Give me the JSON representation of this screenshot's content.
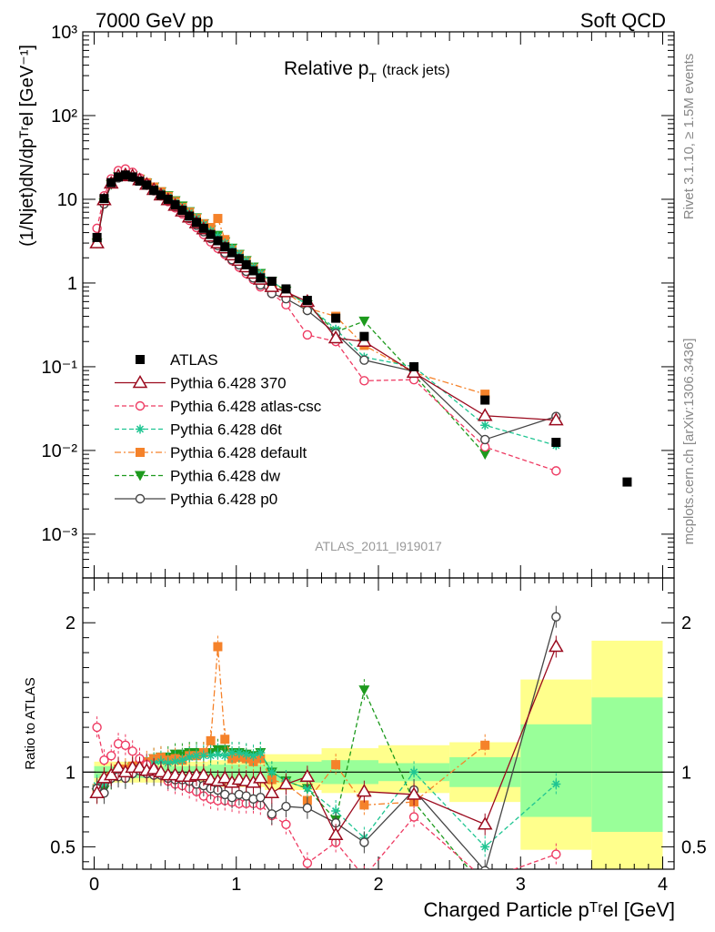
{
  "header": {
    "left": "7000 GeV pp",
    "right": "Soft QCD"
  },
  "side_labels": {
    "rivet": "Rivet 3.1.10, ≥ 1.5M events",
    "mcplots": "mcplots.cern.ch [arXiv:1306.3436]"
  },
  "analysis_id": "ATLAS_2011_I919017",
  "colors": {
    "atlas": "#000000",
    "p370": "#9b0a1e",
    "atlascsc": "#ee3a62",
    "d6t": "#1fc592",
    "default": "#f5822a",
    "dw": "#1d9a1d",
    "p0": "#454545",
    "band_yellow": "#ffff8c",
    "band_green": "#99ff99"
  },
  "chart_data": [
    {
      "type": "scatter",
      "panel": "main",
      "title_main": "Relative p",
      "title_sub": "T",
      "title_note": "(track jets)",
      "ylabel": "(1/Njet)dN/dpᵀʳel [GeV⁻¹]",
      "yscale": "log",
      "ylim": [
        0.0003,
        1000
      ],
      "xlim": [
        -0.08,
        4.08
      ],
      "y_ticks": [
        {
          "label": "10⁻³",
          "value": 0.001
        },
        {
          "label": "10⁻²",
          "value": 0.01
        },
        {
          "label": "10⁻¹",
          "value": 0.1
        },
        {
          "label": "1",
          "value": 1
        },
        {
          "label": "10",
          "value": 10
        },
        {
          "label": "10²",
          "value": 100
        },
        {
          "label": "10³",
          "value": 1000
        }
      ],
      "x": [
        0.02,
        0.07,
        0.12,
        0.17,
        0.22,
        0.27,
        0.32,
        0.37,
        0.42,
        0.47,
        0.52,
        0.57,
        0.62,
        0.67,
        0.72,
        0.77,
        0.82,
        0.87,
        0.92,
        0.97,
        1.02,
        1.07,
        1.12,
        1.17,
        1.25,
        1.35,
        1.5,
        1.7,
        1.9,
        2.25,
        2.75,
        3.25,
        3.75
      ],
      "series": [
        {
          "name": "ATLAS",
          "key": "atlas",
          "marker": "square-filled",
          "line": "none",
          "values": [
            3.5,
            10.2,
            15.8,
            18.5,
            19.5,
            18.5,
            16.5,
            14.8,
            12.8,
            11.2,
            10.0,
            8.6,
            7.4,
            6.3,
            5.3,
            4.5,
            3.8,
            3.2,
            2.7,
            2.3,
            1.95,
            1.65,
            1.4,
            1.15,
            1.05,
            0.85,
            0.62,
            0.38,
            0.23,
            0.1,
            0.04,
            0.0125,
            0.0042
          ]
        },
        {
          "name": "Pythia 6.428 370",
          "key": "p370",
          "marker": "triangle-open",
          "line": "solid",
          "values": [
            3.0,
            9.8,
            15.5,
            19.0,
            19.5,
            19.0,
            17.0,
            15.0,
            13.0,
            11.2,
            9.8,
            8.4,
            7.2,
            6.1,
            5.2,
            4.4,
            3.6,
            3.0,
            2.6,
            2.15,
            1.85,
            1.55,
            1.3,
            1.1,
            0.9,
            0.78,
            0.6,
            0.22,
            0.2,
            0.085,
            0.026,
            0.023,
            null
          ]
        },
        {
          "name": "Pythia 6.428 atlas-csc",
          "key": "atlascsc",
          "marker": "circle-open",
          "line": "dashed",
          "values": [
            4.5,
            11.0,
            17.5,
            22.0,
            23.0,
            21.0,
            18.0,
            15.5,
            13.0,
            11.0,
            9.4,
            7.9,
            6.7,
            5.6,
            4.6,
            3.8,
            3.1,
            2.6,
            2.2,
            1.85,
            1.55,
            1.3,
            1.1,
            0.9,
            0.75,
            0.55,
            0.24,
            0.2,
            0.068,
            0.07,
            0.011,
            0.0057,
            null
          ]
        },
        {
          "name": "Pythia 6.428 d6t",
          "key": "d6t",
          "marker": "star",
          "line": "dashed",
          "values": [
            3.2,
            9.4,
            15.3,
            18.3,
            19.0,
            18.8,
            17.0,
            15.4,
            13.6,
            12.0,
            10.6,
            9.2,
            8.0,
            6.9,
            5.9,
            5.0,
            4.2,
            3.6,
            3.0,
            2.6,
            2.2,
            1.85,
            1.55,
            1.3,
            1.05,
            0.8,
            0.55,
            0.28,
            0.13,
            0.1,
            0.02,
            0.0115,
            null
          ]
        },
        {
          "name": "Pythia 6.428 default",
          "key": "default",
          "marker": "square-filled",
          "line": "dashdot",
          "values": [
            3.1,
            9.6,
            15.4,
            18.8,
            19.8,
            19.2,
            17.5,
            15.8,
            14.0,
            12.3,
            10.8,
            9.4,
            8.0,
            7.0,
            5.9,
            5.1,
            4.6,
            5.9,
            3.3,
            2.5,
            2.15,
            1.8,
            1.5,
            1.25,
            1.0,
            0.78,
            0.5,
            0.4,
            0.18,
            0.085,
            0.047,
            null,
            null
          ]
        },
        {
          "name": "Pythia 6.428 dw",
          "key": "dw",
          "marker": "triangle-down-filled",
          "line": "dashed",
          "values": [
            3.0,
            9.0,
            15.0,
            18.5,
            19.5,
            19.0,
            17.2,
            15.6,
            14.0,
            12.3,
            11.0,
            9.6,
            8.3,
            7.1,
            6.0,
            5.1,
            4.3,
            3.7,
            3.1,
            2.6,
            2.2,
            1.85,
            1.55,
            1.3,
            1.05,
            0.8,
            0.55,
            0.26,
            0.35,
            0.08,
            0.009,
            null,
            null
          ]
        },
        {
          "name": "Pythia 6.428 p0",
          "key": "p0",
          "marker": "circle-open",
          "line": "solid",
          "values": [
            3.1,
            8.8,
            15.2,
            18.0,
            18.8,
            18.3,
            16.6,
            14.7,
            12.6,
            11.0,
            9.6,
            8.2,
            7.0,
            5.9,
            4.9,
            4.1,
            3.4,
            2.8,
            2.3,
            1.9,
            1.65,
            1.38,
            1.15,
            0.95,
            0.75,
            0.65,
            0.47,
            0.25,
            0.12,
            0.088,
            0.0135,
            0.0255,
            null
          ]
        }
      ],
      "legend_position": "left-middle"
    },
    {
      "type": "line",
      "panel": "ratio",
      "ylabel": "Ratio to ATLAS",
      "xlabel": "Charged Particle pᵀʳel [GeV]",
      "ylim": [
        0.35,
        2.3
      ],
      "xlim": [
        -0.08,
        4.08
      ],
      "y_ticks": [
        {
          "label": "0.5",
          "value": 0.5
        },
        {
          "label": "1",
          "value": 1
        },
        {
          "label": "2",
          "value": 2
        }
      ],
      "x_ticks": [
        {
          "label": "0",
          "value": 0
        },
        {
          "label": "1",
          "value": 1
        },
        {
          "label": "2",
          "value": 2
        },
        {
          "label": "3",
          "value": 3
        },
        {
          "label": "4",
          "value": 4
        }
      ],
      "reference_line": 1,
      "uncertainty_bands": [
        {
          "x0": 0.0,
          "x1": 0.8,
          "yellow": [
            0.93,
            1.07
          ],
          "green": [
            0.96,
            1.04
          ]
        },
        {
          "x0": 0.8,
          "x1": 1.2,
          "yellow": [
            0.9,
            1.08
          ],
          "green": [
            0.95,
            1.05
          ]
        },
        {
          "x0": 1.2,
          "x1": 1.6,
          "yellow": [
            0.88,
            1.12
          ],
          "green": [
            0.93,
            1.07
          ]
        },
        {
          "x0": 1.6,
          "x1": 2.0,
          "yellow": [
            0.86,
            1.16
          ],
          "green": [
            0.92,
            1.08
          ]
        },
        {
          "x0": 2.0,
          "x1": 2.5,
          "yellow": [
            0.86,
            1.18
          ],
          "green": [
            0.94,
            1.06
          ]
        },
        {
          "x0": 2.5,
          "x1": 3.0,
          "yellow": [
            0.8,
            1.2
          ],
          "green": [
            0.9,
            1.1
          ]
        },
        {
          "x0": 3.0,
          "x1": 3.5,
          "yellow": [
            0.48,
            1.62
          ],
          "green": [
            0.7,
            1.32
          ]
        },
        {
          "x0": 3.5,
          "x1": 4.0,
          "yellow": [
            0.35,
            1.88
          ],
          "green": [
            0.6,
            1.5
          ]
        }
      ],
      "x": [
        0.02,
        0.07,
        0.12,
        0.17,
        0.22,
        0.27,
        0.32,
        0.37,
        0.42,
        0.47,
        0.52,
        0.57,
        0.62,
        0.67,
        0.72,
        0.77,
        0.82,
        0.87,
        0.92,
        0.97,
        1.02,
        1.07,
        1.12,
        1.17,
        1.25,
        1.35,
        1.5,
        1.7,
        1.9,
        2.25,
        2.75,
        3.25
      ],
      "series": [
        {
          "name": "Pythia 6.428 370",
          "key": "p370",
          "values": [
            0.86,
            0.96,
            0.98,
            1.03,
            1.0,
            1.03,
            1.03,
            1.01,
            1.02,
            1.0,
            0.98,
            0.98,
            0.97,
            0.97,
            0.98,
            0.98,
            0.95,
            0.94,
            0.96,
            0.93,
            0.95,
            0.94,
            0.93,
            0.96,
            0.86,
            0.92,
            0.97,
            0.58,
            0.87,
            0.85,
            0.65,
            1.84
          ]
        },
        {
          "name": "Pythia 6.428 atlas-csc",
          "key": "atlascsc",
          "values": [
            1.3,
            1.08,
            1.11,
            1.19,
            1.18,
            1.14,
            1.09,
            1.05,
            1.02,
            0.98,
            0.94,
            0.92,
            0.91,
            0.89,
            0.87,
            0.84,
            0.82,
            0.81,
            0.81,
            0.8,
            0.79,
            0.79,
            0.79,
            0.78,
            0.71,
            0.65,
            0.39,
            0.53,
            0.3,
            0.7,
            0.28,
            0.45
          ]
        },
        {
          "name": "Pythia 6.428 d6t",
          "key": "d6t",
          "values": [
            0.91,
            0.92,
            0.97,
            0.99,
            0.97,
            1.02,
            1.03,
            1.04,
            1.06,
            1.07,
            1.06,
            1.07,
            1.08,
            1.1,
            1.11,
            1.11,
            1.11,
            1.12,
            1.11,
            1.13,
            1.13,
            1.12,
            1.11,
            1.13,
            1.0,
            0.94,
            0.89,
            0.74,
            0.56,
            1.0,
            0.5,
            0.92
          ]
        },
        {
          "name": "Pythia 6.428 default",
          "key": "default",
          "values": [
            0.89,
            0.94,
            0.97,
            1.02,
            1.02,
            1.04,
            1.06,
            1.07,
            1.09,
            1.1,
            1.08,
            1.09,
            1.08,
            1.11,
            1.11,
            1.13,
            1.21,
            1.84,
            1.22,
            1.09,
            1.1,
            1.09,
            1.07,
            1.09,
            0.95,
            0.92,
            0.81,
            1.05,
            0.78,
            0.8,
            1.18,
            null
          ]
        },
        {
          "name": "Pythia 6.428 dw",
          "key": "dw",
          "values": [
            0.86,
            0.88,
            0.95,
            1.0,
            1.0,
            1.03,
            1.04,
            1.05,
            1.09,
            1.1,
            1.1,
            1.12,
            1.12,
            1.13,
            1.13,
            1.13,
            1.13,
            1.15,
            1.15,
            1.13,
            1.13,
            1.12,
            1.11,
            1.13,
            1.0,
            0.94,
            0.89,
            0.68,
            1.55,
            0.8,
            0.22,
            null
          ]
        },
        {
          "name": "Pythia 6.428 p0",
          "key": "p0",
          "values": [
            0.89,
            0.86,
            0.96,
            0.97,
            0.96,
            0.99,
            1.01,
            0.99,
            0.98,
            0.98,
            0.96,
            0.95,
            0.95,
            0.94,
            0.92,
            0.91,
            0.89,
            0.88,
            0.85,
            0.83,
            0.85,
            0.84,
            0.82,
            0.83,
            0.72,
            0.77,
            0.76,
            0.66,
            0.53,
            0.88,
            0.34,
            2.04
          ]
        }
      ]
    }
  ]
}
